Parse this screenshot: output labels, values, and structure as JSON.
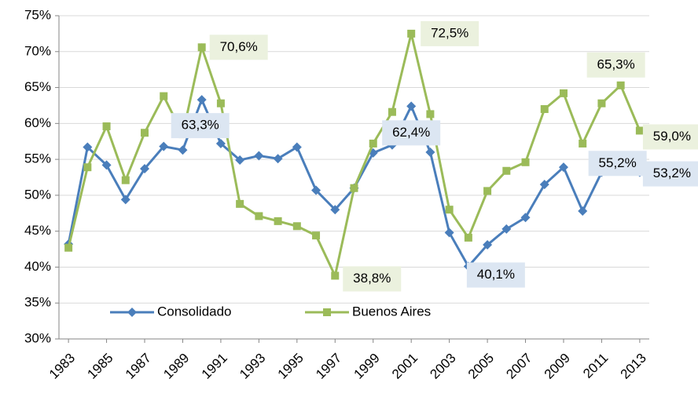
{
  "chart_data": {
    "type": "line",
    "x": [
      1983,
      1984,
      1985,
      1986,
      1987,
      1988,
      1989,
      1990,
      1991,
      1992,
      1993,
      1994,
      1995,
      1996,
      1997,
      1998,
      1999,
      2000,
      2001,
      2002,
      2003,
      2004,
      2005,
      2006,
      2007,
      2008,
      2009,
      2010,
      2011,
      2012,
      2013
    ],
    "series": [
      {
        "name": "Consolidado",
        "color": "#4a7ebb",
        "marker": "diamond",
        "values": [
          43.2,
          56.7,
          54.2,
          49.4,
          53.7,
          56.8,
          56.3,
          63.3,
          57.2,
          54.9,
          55.5,
          55.1,
          56.7,
          50.7,
          48.0,
          51.0,
          55.9,
          57.0,
          62.4,
          56.0,
          44.8,
          40.1,
          43.1,
          45.3,
          46.9,
          51.5,
          53.9,
          47.8,
          53.2,
          55.2,
          53.2
        ],
        "value_labels": [
          null,
          null,
          null,
          null,
          null,
          null,
          null,
          "63,3%",
          null,
          null,
          null,
          null,
          null,
          null,
          null,
          null,
          null,
          null,
          "62,4%",
          null,
          null,
          "40,1%",
          null,
          null,
          null,
          null,
          null,
          null,
          null,
          "55,2%",
          "53,2%"
        ]
      },
      {
        "name": "Buenos Aires",
        "color": "#9bbb59",
        "marker": "square",
        "values": [
          42.7,
          53.9,
          59.6,
          52.1,
          58.7,
          63.8,
          58.5,
          70.6,
          62.8,
          48.8,
          47.1,
          46.4,
          45.7,
          44.4,
          38.8,
          51.0,
          57.2,
          61.6,
          72.5,
          61.3,
          48.0,
          44.1,
          50.6,
          53.4,
          54.6,
          62.0,
          64.2,
          57.2,
          62.8,
          65.3,
          59.0
        ],
        "value_labels": [
          null,
          null,
          null,
          null,
          null,
          null,
          null,
          "70,6%",
          null,
          null,
          null,
          null,
          null,
          null,
          "38,8%",
          null,
          null,
          null,
          "72,5%",
          null,
          null,
          null,
          null,
          null,
          null,
          null,
          null,
          null,
          null,
          "65,3%",
          "59,0%"
        ]
      }
    ],
    "xlim": [
      1982.5,
      2013.5
    ],
    "xticks": [
      1983,
      1985,
      1987,
      1989,
      1991,
      1993,
      1995,
      1997,
      1999,
      2001,
      2003,
      2005,
      2007,
      2009,
      2011,
      2013
    ],
    "ylim": [
      30,
      75
    ],
    "yticks": [
      {
        "value": 30,
        "label": "30%"
      },
      {
        "value": 35,
        "label": "35%"
      },
      {
        "value": 40,
        "label": "40%"
      },
      {
        "value": 45,
        "label": "45%"
      },
      {
        "value": 50,
        "label": "50%"
      },
      {
        "value": 55,
        "label": "55%"
      },
      {
        "value": 60,
        "label": "60%"
      },
      {
        "value": 65,
        "label": "65%"
      },
      {
        "value": 70,
        "label": "70%"
      },
      {
        "value": 75,
        "label": "75%"
      }
    ],
    "grid": true,
    "legend": "bottom-left"
  }
}
